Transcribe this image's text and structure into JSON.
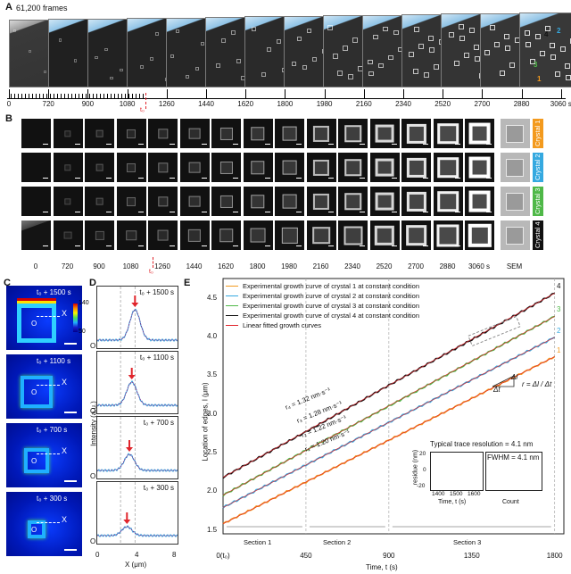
{
  "panel_a": {
    "letter": "A",
    "frames_label": "61,200 frames",
    "ticks": [
      "0",
      "720",
      "900",
      "1080",
      "1260",
      "1440",
      "1620",
      "1800",
      "1980",
      "2160",
      "2340",
      "2520",
      "2700",
      "2880",
      "3060 s"
    ],
    "t0_label": "t₀",
    "crystal_marks": [
      "2",
      "3",
      "1",
      "4"
    ]
  },
  "panel_b": {
    "letter": "B",
    "ticks": [
      "0",
      "720",
      "900",
      "1080",
      "1260",
      "1440",
      "1620",
      "1800",
      "1980",
      "2160",
      "2340",
      "2520",
      "2700",
      "2880",
      "3060 s",
      "SEM"
    ],
    "t0_label": "t₀",
    "crystals": [
      {
        "label": "Crystal 1",
        "color": "#f39a1e"
      },
      {
        "label": "Crystal 2",
        "color": "#35a9e0"
      },
      {
        "label": "Crystal 3",
        "color": "#4fb848"
      },
      {
        "label": "Crystal 4",
        "color": "#111111"
      }
    ]
  },
  "panel_c": {
    "letter": "C",
    "colorbar_max": "140",
    "colorbar_min": "50",
    "x_label": "X",
    "origin_label": "O",
    "rows": [
      "t₀ + 1500 s",
      "t₀ + 1100 s",
      "t₀ + 700 s",
      "t₀ + 300 s"
    ]
  },
  "panel_d": {
    "letter": "D",
    "ylabel": "Intensity (a.u.)",
    "xlabel": "X (μm)",
    "x_ticks": [
      "0",
      "4",
      "8"
    ],
    "origin_label": "O",
    "rows": [
      "t₀ + 1500 s",
      "t₀ + 1100 s",
      "t₀ + 700 s",
      "t₀ + 300 s"
    ]
  },
  "panel_e": {
    "letter": "E",
    "legend": [
      {
        "label": "Experimental growth curve of crystal 1 at constant condition",
        "color": "#f39a1e"
      },
      {
        "label": "Experimental growth curve of crystal 2 at constant condition",
        "color": "#35a9e0"
      },
      {
        "label": "Experimental growth curve of crystal 3 at constant condition",
        "color": "#4fb848"
      },
      {
        "label": "Experimental growth curve of crystal 4 at constant condition",
        "color": "#111111"
      },
      {
        "label": "Linear fitted growth curves",
        "color": "#e0242b"
      }
    ],
    "rates": [
      "r₄ = 1.32 nm·s⁻¹",
      "r₃ = 1.28 nm·s⁻¹",
      "r₂ = 1.22 nm·s⁻¹",
      "r₁ = 1.20 nm·s⁻¹"
    ],
    "formula": "r = Δl / Δt",
    "delta_l": "Δl",
    "delta_t": "Δt",
    "resolution_note": "Typical trace resolution = 4.1 nm",
    "fwhm": "FWHM = 4.1 nm",
    "inset_ylabel": "residue (nm)",
    "inset_xlabel": "Time, t (s)",
    "inset_count": "Count",
    "inset_x_ticks": [
      "1400",
      "1500",
      "1600"
    ],
    "inset_y_ticks": [
      "20",
      "0",
      "-20"
    ],
    "sections": [
      "Section 1",
      "Section 2",
      "Section 3"
    ],
    "ylabel": "Location of edges, l (μm)",
    "xlabel": "Time, t (s)",
    "x_ticks": [
      "0(t₀)",
      "450",
      "900",
      "1350",
      "1800"
    ],
    "y_ticks": [
      "1.5",
      "2.0",
      "2.5",
      "3.0",
      "3.5",
      "4.0",
      "4.5"
    ],
    "curve_ids": [
      "4",
      "3",
      "2",
      "1"
    ]
  },
  "chart_data": {
    "type": "line",
    "xlabel": "Time, t (s)",
    "ylabel": "Location of edges, l (μm)",
    "xlim": [
      0,
      1850
    ],
    "ylim": [
      1.45,
      4.75
    ],
    "x": [
      0,
      450,
      900,
      1350,
      1800
    ],
    "series": [
      {
        "name": "Experimental growth curve of crystal 1 at constant condition",
        "values": [
          1.58,
          2.12,
          2.66,
          3.2,
          3.74
        ]
      },
      {
        "name": "Experimental growth curve of crystal 2 at constant condition",
        "values": [
          1.79,
          2.34,
          2.89,
          3.44,
          3.99
        ]
      },
      {
        "name": "Experimental growth curve of crystal 3 at constant condition",
        "values": [
          1.95,
          2.53,
          3.1,
          3.68,
          4.26
        ]
      },
      {
        "name": "Experimental growth curve of crystal 4 at constant condition",
        "values": [
          2.18,
          2.77,
          3.37,
          3.96,
          4.56
        ]
      }
    ]
  }
}
